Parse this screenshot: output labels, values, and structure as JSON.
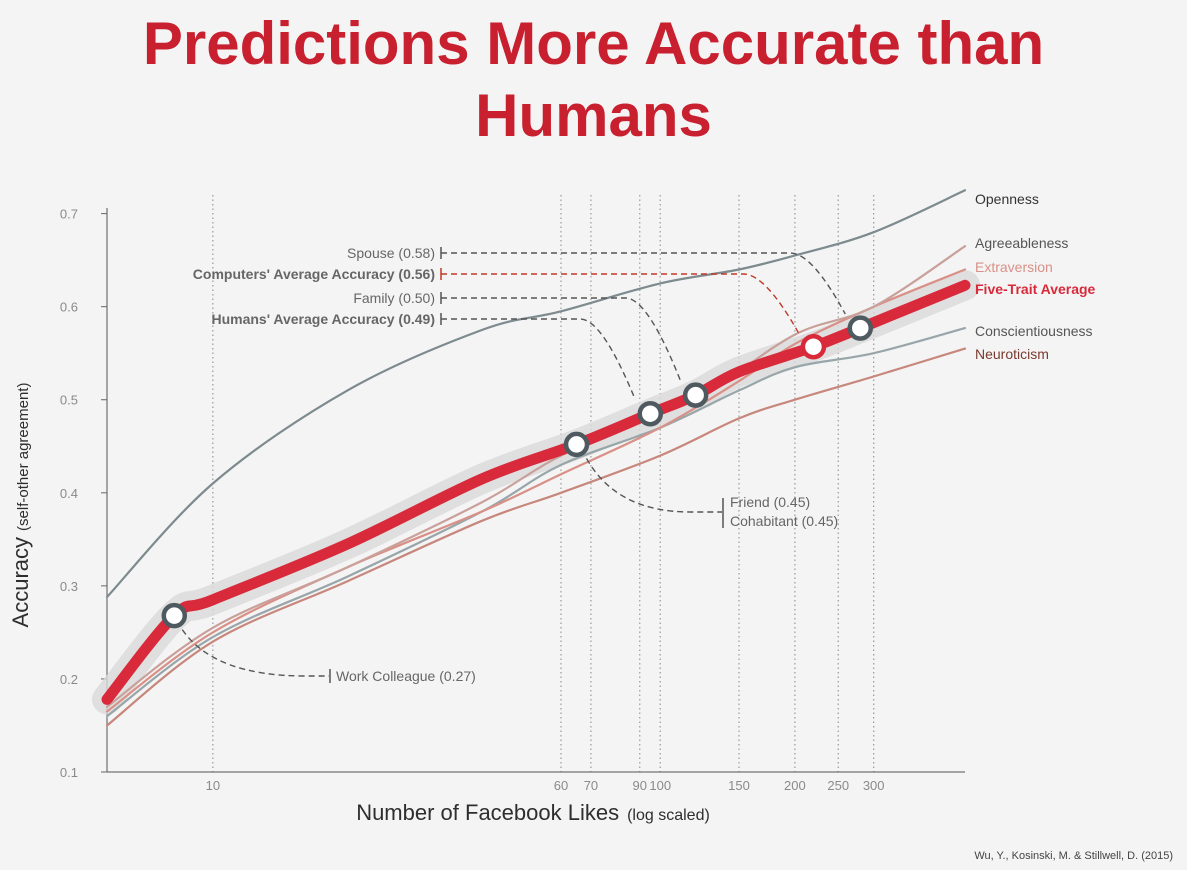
{
  "slide": {
    "title_line1": "Predictions More Accurate than",
    "title_line2": "Humans",
    "citation": "Wu, Y., Kosinski, M. & Stillwell, D. (2015)"
  },
  "colors": {
    "title": "#c8202f",
    "five_trait": "#d82a3a",
    "openness": "#7d8a8e",
    "agreeableness": "#c9a09a",
    "extraversion": "#d99087",
    "conscientiousness": "#98a6aa",
    "neuroticism": "#c8877c",
    "computers_label": "#c8202f",
    "humans_label": "#3e4a50"
  },
  "chart_data": {
    "type": "line",
    "xlabel": "Number of Facebook Likes",
    "xlabel_note": "(log scaled)",
    "ylabel": "Accuracy",
    "ylabel_note": "(self-other agreement)",
    "x_scale": "log",
    "xlim": [
      5.8,
      480
    ],
    "ylim": [
      0.1,
      0.72
    ],
    "x_ticks": [
      10,
      60,
      70,
      90,
      100,
      150,
      200,
      250,
      300
    ],
    "y_ticks": [
      0.1,
      0.2,
      0.3,
      0.4,
      0.5,
      0.6,
      0.7
    ],
    "grid": "vertical dotted lines at x ticks and at x = 10, 60, 70, 90, 100, 150, 200, 250, 300",
    "series": [
      {
        "name": "Openness",
        "key": "openness",
        "x": [
          5.8,
          10,
          20,
          40,
          60,
          100,
          150,
          200,
          300,
          480
        ],
        "y": [
          0.288,
          0.41,
          0.51,
          0.575,
          0.595,
          0.625,
          0.64,
          0.655,
          0.68,
          0.725
        ]
      },
      {
        "name": "Agreeableness",
        "key": "agreeableness",
        "x": [
          5.8,
          10,
          20,
          40,
          60,
          100,
          130,
          200,
          300,
          480
        ],
        "y": [
          0.17,
          0.255,
          0.32,
          0.39,
          0.44,
          0.485,
          0.51,
          0.57,
          0.6,
          0.665
        ]
      },
      {
        "name": "Extraversion",
        "key": "extraversion",
        "x": [
          5.8,
          10,
          20,
          40,
          60,
          100,
          150,
          200,
          300,
          480
        ],
        "y": [
          0.165,
          0.25,
          0.32,
          0.38,
          0.42,
          0.47,
          0.52,
          0.56,
          0.6,
          0.64
        ]
      },
      {
        "name": "Five-Trait Average",
        "key": "five_trait",
        "x": [
          5.8,
          8.2,
          10,
          20,
          40,
          65,
          95,
          120,
          150,
          220,
          280,
          480
        ],
        "y": [
          0.178,
          0.268,
          0.285,
          0.345,
          0.415,
          0.452,
          0.485,
          0.505,
          0.53,
          0.557,
          0.577,
          0.623
        ]
      },
      {
        "name": "Conscientiousness",
        "key": "conscientiousness",
        "x": [
          5.8,
          10,
          20,
          40,
          60,
          100,
          150,
          200,
          300,
          480
        ],
        "y": [
          0.16,
          0.245,
          0.31,
          0.38,
          0.43,
          0.47,
          0.51,
          0.535,
          0.55,
          0.577
        ]
      },
      {
        "name": "Neuroticism",
        "key": "neuroticism",
        "x": [
          5.8,
          10,
          20,
          40,
          60,
          100,
          150,
          200,
          300,
          480
        ],
        "y": [
          0.15,
          0.24,
          0.305,
          0.37,
          0.4,
          0.44,
          0.48,
          0.5,
          0.525,
          0.555
        ]
      }
    ],
    "markers": [
      {
        "x": 8.2,
        "y": 0.268,
        "style": "human"
      },
      {
        "x": 65,
        "y": 0.452,
        "style": "human"
      },
      {
        "x": 95,
        "y": 0.485,
        "style": "human"
      },
      {
        "x": 120,
        "y": 0.505,
        "style": "human"
      },
      {
        "x": 220,
        "y": 0.557,
        "style": "computer"
      },
      {
        "x": 280,
        "y": 0.577,
        "style": "human"
      }
    ],
    "comparisons": [
      {
        "label": "Spouse (0.58)",
        "value": 0.58,
        "style": "normal",
        "target_marker": 5
      },
      {
        "label": "Computers' Average Accuracy (0.56)",
        "value": 0.56,
        "style": "computers",
        "target_marker": 4
      },
      {
        "label": "Family (0.50)",
        "value": 0.5,
        "style": "normal",
        "target_marker": 3
      },
      {
        "label": "Humans' Average Accuracy (0.49)",
        "value": 0.49,
        "style": "humans",
        "target_marker": 2
      },
      {
        "label": "Friend (0.45)",
        "value": 0.45,
        "style": "normal",
        "target_marker": 1
      },
      {
        "label": "Cohabitant (0.45)",
        "value": 0.45,
        "style": "normal",
        "target_marker": 1
      },
      {
        "label": "Work Colleague (0.27)",
        "value": 0.27,
        "style": "normal",
        "target_marker": 0
      }
    ],
    "legend_labels": [
      {
        "name": "Openness",
        "key": "openness"
      },
      {
        "name": "Agreeableness",
        "key": "agreeableness"
      },
      {
        "name": "Extraversion",
        "key": "extraversion"
      },
      {
        "name": "Five-Trait Average",
        "key": "five_trait"
      },
      {
        "name": "Conscientiousness",
        "key": "conscientiousness"
      },
      {
        "name": "Neuroticism",
        "key": "neuroticism"
      }
    ]
  }
}
